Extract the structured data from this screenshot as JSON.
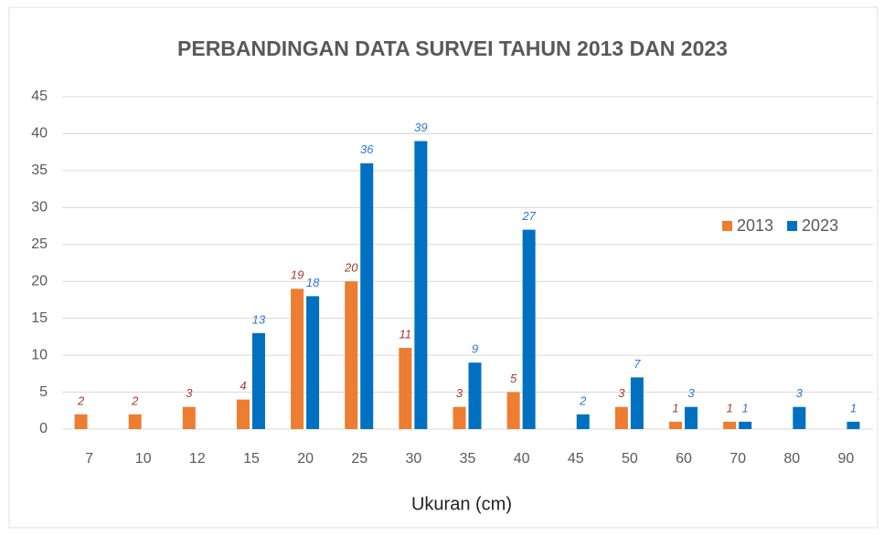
{
  "chart_data": {
    "type": "bar",
    "title": "PERBANDINGAN DATA SURVEI TAHUN 2013 DAN 2023",
    "x_label": "Ukuran (cm)",
    "categories": [
      "7",
      "10",
      "12",
      "15",
      "20",
      "25",
      "30",
      "35",
      "40",
      "45",
      "50",
      "60",
      "70",
      "80",
      "90"
    ],
    "series": [
      {
        "name": "2013",
        "color": "#ed7d31",
        "label_color": "#a33a32",
        "values": [
          2,
          2,
          3,
          4,
          19,
          20,
          11,
          3,
          5,
          null,
          3,
          1,
          1,
          null,
          null
        ]
      },
      {
        "name": "2023",
        "color": "#0070c0",
        "label_color": "#2e75d6",
        "values": [
          null,
          null,
          null,
          13,
          18,
          36,
          39,
          9,
          27,
          2,
          7,
          3,
          1,
          3,
          1
        ]
      }
    ],
    "ylim": [
      0,
      45
    ],
    "yticks": [
      0,
      5,
      10,
      15,
      20,
      25,
      30,
      35,
      40,
      45
    ],
    "grid": true,
    "legend": "right"
  }
}
